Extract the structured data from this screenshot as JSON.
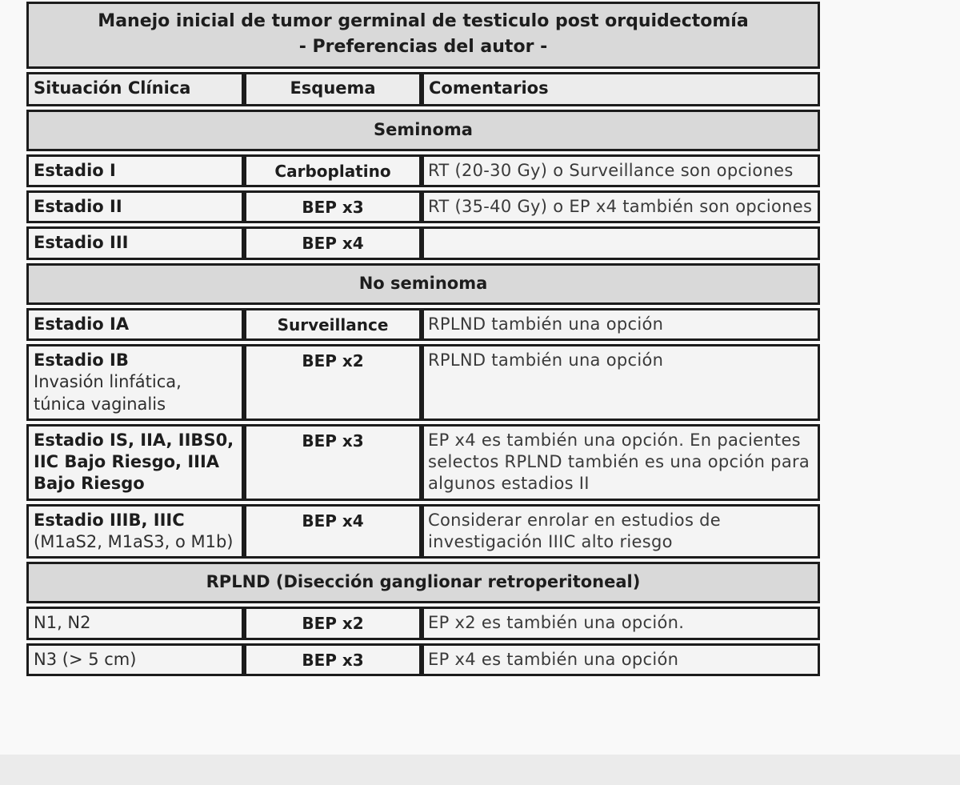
{
  "table": {
    "title_line1": "Manejo inicial de tumor germinal de testiculo post orquidectomía",
    "title_line2": "- Preferencias del autor -",
    "columns": [
      "Situación Clínica",
      "Esquema",
      "Comentarios"
    ],
    "sections": [
      {
        "header": "Seminoma",
        "rows": [
          {
            "situacion": "Estadio I",
            "situacion_sub": "",
            "situacion_bold": true,
            "esquema": "Carboplatino",
            "comentarios": "RT (20-30 Gy) o Surveillance son opciones"
          },
          {
            "situacion": "Estadio II",
            "situacion_sub": "",
            "situacion_bold": true,
            "esquema": "BEP x3",
            "comentarios": "RT (35-40 Gy) o EP x4 también son opciones"
          },
          {
            "situacion": "Estadio III",
            "situacion_sub": "",
            "situacion_bold": true,
            "esquema": "BEP x4",
            "comentarios": ""
          }
        ]
      },
      {
        "header": "No seminoma",
        "rows": [
          {
            "situacion": "Estadio IA",
            "situacion_sub": "",
            "situacion_bold": true,
            "esquema": "Surveillance",
            "comentarios": "RPLND también una opción"
          },
          {
            "situacion": "Estadio IB",
            "situacion_sub": "Invasión linfática, túnica vaginalis",
            "situacion_bold": true,
            "esquema": "BEP x2",
            "comentarios": "RPLND también una opción"
          },
          {
            "situacion": "Estadio IS, IIA, IIBS0, IIC Bajo Riesgo, IIIA Bajo Riesgo",
            "situacion_sub": "",
            "situacion_bold": true,
            "esquema": "BEP x3",
            "comentarios": "EP x4 es también una opción. En pacientes selectos RPLND también es una opción para algunos estadios II"
          },
          {
            "situacion": "Estadio IIIB, IIIC",
            "situacion_sub": "(M1aS2, M1aS3, o M1b)",
            "situacion_bold": true,
            "esquema": "BEP x4",
            "comentarios": "Considerar enrolar en estudios de investigación IIIC alto riesgo"
          }
        ]
      },
      {
        "header": "RPLND (Disección ganglionar retroperitoneal)",
        "rows": [
          {
            "situacion": "N1, N2",
            "situacion_sub": "",
            "situacion_bold": false,
            "esquema": "BEP x2",
            "comentarios": "EP x2 es también una opción."
          },
          {
            "situacion": "N3 (> 5 cm)",
            "situacion_sub": "",
            "situacion_bold": false,
            "esquema": "BEP x3",
            "comentarios": "EP x4 es también una opción"
          }
        ]
      }
    ]
  },
  "colors": {
    "section_bg": "#d9d9d9",
    "header_bg": "#ececec",
    "cell_bg": "#f4f4f4",
    "border": "#1c1c1c",
    "page_bg": "#f9f9f9",
    "bottom_strip_bg": "#ebebeb"
  }
}
